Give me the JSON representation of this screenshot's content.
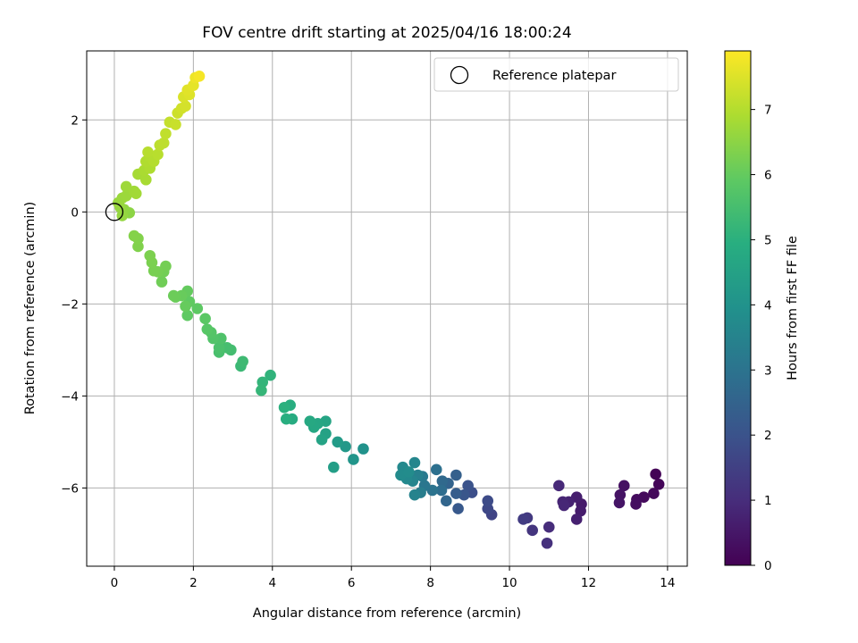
{
  "chart_data": {
    "type": "scatter",
    "title": "FOV centre drift starting at 2025/04/16 18:00:24",
    "xlabel": "Angular distance from reference (arcmin)",
    "ylabel": "Rotation from reference (arcmin)",
    "xlim": [
      -0.7,
      14.5
    ],
    "ylim": [
      -7.7,
      3.5
    ],
    "xticks": [
      0,
      2,
      4,
      6,
      8,
      10,
      12,
      14
    ],
    "yticks": [
      2,
      0,
      -2,
      -4,
      -6
    ],
    "xtick_labels": [
      "0",
      "2",
      "4",
      "6",
      "8",
      "10",
      "12",
      "14"
    ],
    "ytick_labels": [
      "2",
      "0",
      "−2",
      "−4",
      "−6"
    ],
    "grid": true,
    "legend": {
      "position": "top-right",
      "entries": [
        "Reference platepar"
      ]
    },
    "reference_point": {
      "x": 0,
      "y": 0
    },
    "colorbar": {
      "label": "Hours from first FF file",
      "colormap": "viridis",
      "range": [
        0,
        7.9
      ],
      "ticks": [
        0,
        1,
        2,
        3,
        4,
        5,
        6,
        7
      ],
      "tick_labels": [
        "0",
        "1",
        "2",
        "3",
        "4",
        "5",
        "6",
        "7"
      ]
    },
    "points": [
      [
        13.7,
        -5.7,
        0.05
      ],
      [
        13.78,
        -5.92,
        0.1
      ],
      [
        13.65,
        -6.12,
        0.15
      ],
      [
        13.4,
        -6.2,
        0.2
      ],
      [
        13.22,
        -6.25,
        0.25
      ],
      [
        13.2,
        -6.35,
        0.3
      ],
      [
        12.9,
        -5.95,
        0.35
      ],
      [
        12.8,
        -6.15,
        0.4
      ],
      [
        12.78,
        -6.32,
        0.45
      ],
      [
        11.82,
        -6.35,
        0.55
      ],
      [
        11.8,
        -6.5,
        0.6
      ],
      [
        11.7,
        -6.2,
        0.65
      ],
      [
        11.7,
        -6.68,
        0.7
      ],
      [
        11.5,
        -6.3,
        0.75
      ],
      [
        11.35,
        -6.3,
        0.8
      ],
      [
        11.38,
        -6.38,
        0.85
      ],
      [
        11.25,
        -5.95,
        0.9
      ],
      [
        11.0,
        -6.85,
        1.0
      ],
      [
        10.95,
        -7.2,
        1.1
      ],
      [
        10.58,
        -6.92,
        1.2
      ],
      [
        10.45,
        -6.65,
        1.3
      ],
      [
        10.35,
        -6.68,
        1.4
      ],
      [
        9.55,
        -6.58,
        1.6
      ],
      [
        9.45,
        -6.45,
        1.7
      ],
      [
        9.45,
        -6.28,
        1.8
      ],
      [
        9.05,
        -6.1,
        1.9
      ],
      [
        8.95,
        -5.95,
        2.0
      ],
      [
        8.85,
        -6.15,
        2.1
      ],
      [
        8.7,
        -6.45,
        2.2
      ],
      [
        8.65,
        -6.12,
        2.3
      ],
      [
        8.65,
        -5.72,
        2.4
      ],
      [
        8.45,
        -5.9,
        2.5
      ],
      [
        8.4,
        -6.28,
        2.6
      ],
      [
        8.3,
        -5.85,
        2.7
      ],
      [
        8.28,
        -6.05,
        2.8
      ],
      [
        8.15,
        -5.6,
        2.9
      ],
      [
        8.05,
        -6.05,
        3.0
      ],
      [
        7.85,
        -5.95,
        3.1
      ],
      [
        7.8,
        -5.75,
        3.2
      ],
      [
        7.75,
        -6.1,
        3.3
      ],
      [
        7.68,
        -5.72,
        3.4
      ],
      [
        7.6,
        -6.15,
        3.5
      ],
      [
        7.55,
        -5.85,
        3.55
      ],
      [
        7.6,
        -5.45,
        3.6
      ],
      [
        7.4,
        -5.8,
        3.65
      ],
      [
        7.3,
        -5.55,
        3.7
      ],
      [
        7.25,
        -5.72,
        3.75
      ],
      [
        7.45,
        -5.65,
        3.8
      ],
      [
        6.3,
        -5.15,
        4.0
      ],
      [
        6.05,
        -5.38,
        4.1
      ],
      [
        5.85,
        -5.1,
        4.2
      ],
      [
        5.65,
        -5.0,
        4.3
      ],
      [
        5.55,
        -5.55,
        4.4
      ],
      [
        5.35,
        -4.82,
        4.5
      ],
      [
        5.25,
        -4.95,
        4.55
      ],
      [
        5.35,
        -4.55,
        4.6
      ],
      [
        5.15,
        -4.6,
        4.65
      ],
      [
        5.05,
        -4.68,
        4.7
      ],
      [
        4.95,
        -4.55,
        4.75
      ],
      [
        4.5,
        -4.5,
        4.85
      ],
      [
        4.45,
        -4.2,
        4.9
      ],
      [
        4.35,
        -4.5,
        4.95
      ],
      [
        4.3,
        -4.25,
        5.0
      ],
      [
        3.95,
        -3.55,
        5.1
      ],
      [
        3.75,
        -3.7,
        5.15
      ],
      [
        3.72,
        -3.88,
        5.2
      ],
      [
        3.2,
        -3.35,
        5.3
      ],
      [
        3.25,
        -3.25,
        5.35
      ],
      [
        2.95,
        -3.0,
        5.45
      ],
      [
        2.85,
        -2.95,
        5.5
      ],
      [
        2.65,
        -3.05,
        5.55
      ],
      [
        2.65,
        -2.95,
        5.6
      ],
      [
        2.7,
        -2.75,
        5.65
      ],
      [
        2.5,
        -2.75,
        5.7
      ],
      [
        2.45,
        -2.62,
        5.75
      ],
      [
        2.35,
        -2.55,
        5.8
      ],
      [
        2.3,
        -2.32,
        5.85
      ],
      [
        2.1,
        -2.1,
        5.9
      ],
      [
        1.85,
        -2.25,
        5.92
      ],
      [
        1.9,
        -1.95,
        5.95
      ],
      [
        1.85,
        -1.72,
        6.0
      ],
      [
        1.8,
        -2.05,
        6.02
      ],
      [
        1.7,
        -1.82,
        6.05
      ],
      [
        1.55,
        -1.85,
        6.08
      ],
      [
        1.5,
        -1.82,
        6.1
      ],
      [
        1.2,
        -1.52,
        6.15
      ],
      [
        1.25,
        -1.3,
        6.18
      ],
      [
        1.3,
        -1.18,
        6.2
      ],
      [
        1.1,
        -1.3,
        6.22
      ],
      [
        1.0,
        -1.28,
        6.25
      ],
      [
        0.95,
        -1.1,
        6.28
      ],
      [
        0.9,
        -0.95,
        6.3
      ],
      [
        0.6,
        -0.75,
        6.35
      ],
      [
        0.6,
        -0.58,
        6.38
      ],
      [
        0.5,
        -0.52,
        6.4
      ],
      [
        0.38,
        -0.02,
        6.5
      ],
      [
        0.25,
        0.05,
        6.55
      ],
      [
        0.2,
        -0.08,
        6.6
      ],
      [
        0.15,
        0.1,
        6.62
      ],
      [
        0.1,
        0.2,
        6.65
      ],
      [
        0.2,
        0.3,
        6.68
      ],
      [
        0.3,
        0.35,
        6.7
      ],
      [
        0.3,
        0.55,
        6.72
      ],
      [
        0.5,
        0.45,
        6.75
      ],
      [
        0.55,
        0.4,
        6.78
      ],
      [
        0.6,
        0.82,
        6.82
      ],
      [
        0.8,
        0.7,
        6.85
      ],
      [
        0.75,
        0.9,
        6.88
      ],
      [
        0.9,
        0.95,
        6.92
      ],
      [
        0.8,
        1.1,
        6.95
      ],
      [
        0.9,
        1.2,
        6.98
      ],
      [
        1.0,
        1.1,
        7.0
      ],
      [
        0.85,
        1.3,
        7.03
      ],
      [
        1.1,
        1.25,
        7.05
      ],
      [
        1.15,
        1.45,
        7.1
      ],
      [
        1.25,
        1.5,
        7.12
      ],
      [
        1.3,
        1.7,
        7.15
      ],
      [
        1.4,
        1.95,
        7.2
      ],
      [
        1.55,
        1.9,
        7.25
      ],
      [
        1.6,
        2.15,
        7.3
      ],
      [
        1.7,
        2.25,
        7.35
      ],
      [
        1.8,
        2.3,
        7.4
      ],
      [
        1.75,
        2.5,
        7.45
      ],
      [
        1.9,
        2.55,
        7.5
      ],
      [
        1.85,
        2.65,
        7.55
      ],
      [
        2.0,
        2.75,
        7.6
      ],
      [
        2.05,
        2.92,
        7.7
      ],
      [
        2.15,
        2.95,
        7.8
      ]
    ]
  }
}
